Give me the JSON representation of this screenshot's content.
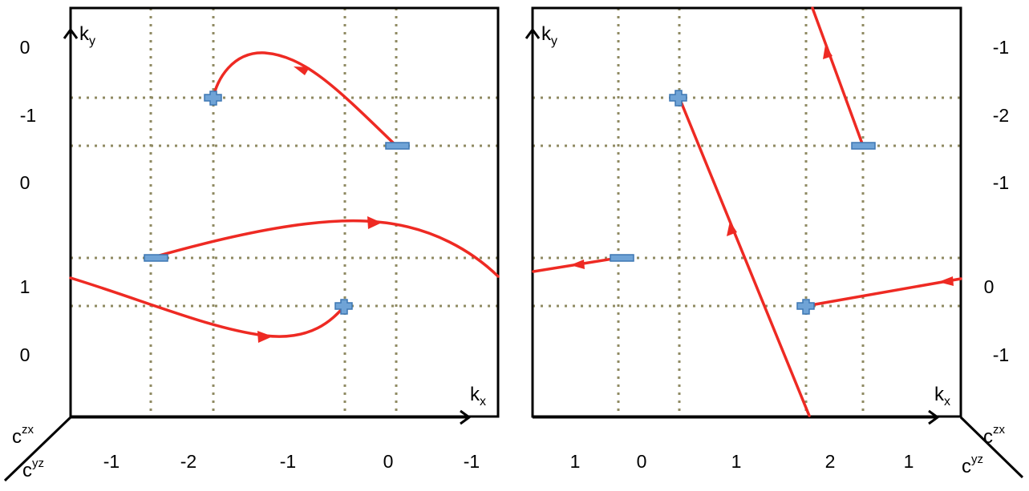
{
  "left_panel": {
    "axis_x": {
      "base": "k",
      "sub": "x"
    },
    "axis_y": {
      "base": "k",
      "sub": "y"
    },
    "left_labels": [
      "0",
      "-1",
      "0",
      "1",
      "0"
    ],
    "bottom_labels": [
      "-1",
      "-2",
      "-1",
      "0",
      "-1"
    ],
    "corner": {
      "upper": {
        "base": "c",
        "sup": "zx"
      },
      "lower": {
        "base": "c",
        "sup": "yz"
      }
    },
    "charges": [
      "+",
      "-",
      "-",
      "+"
    ]
  },
  "right_panel": {
    "axis_x": {
      "base": "k",
      "sub": "x"
    },
    "axis_y": {
      "base": "k",
      "sub": "y"
    },
    "right_labels": [
      "-1",
      "-2",
      "-1",
      "0",
      "-1"
    ],
    "bottom_labels": [
      "1",
      "0",
      "1",
      "2",
      "1"
    ],
    "corner": {
      "upper": {
        "base": "c",
        "sup": "zx"
      },
      "lower": {
        "base": "c",
        "sup": "yz"
      }
    },
    "charges": [
      "+",
      "-",
      "-",
      "+"
    ]
  },
  "colors": {
    "curve": "#ee2a23",
    "grid": "#8f8a62",
    "charge_fill": "#6fa3d6",
    "charge_stroke": "#3d77b3",
    "frame": "#000000"
  }
}
